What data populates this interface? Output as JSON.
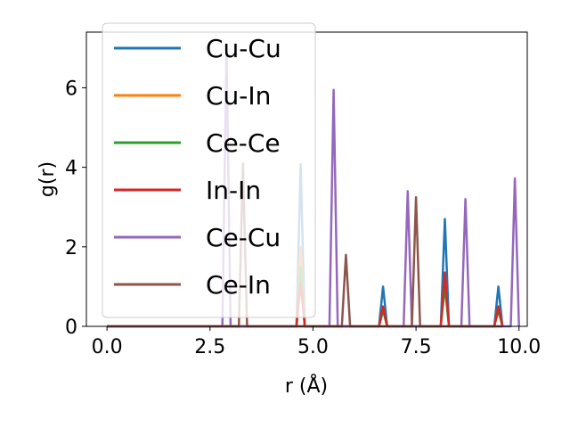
{
  "chart_data": {
    "type": "line",
    "title": "",
    "xlabel": "r (Å)",
    "ylabel": "g(r)",
    "xlim": [
      -0.5,
      10.2
    ],
    "ylim": [
      0,
      7.4
    ],
    "xticks": [
      0.0,
      2.5,
      5.0,
      7.5,
      10.0
    ],
    "xtick_labels": [
      "0.0",
      "2.5",
      "5.0",
      "7.5",
      "10.0"
    ],
    "yticks": [
      0,
      2,
      4,
      6
    ],
    "ytick_labels": [
      "0",
      "2",
      "4",
      "6"
    ],
    "grid": false,
    "legend_position": "top-left",
    "peak_halfwidth": 0.1,
    "series": [
      {
        "name": "Cu-Cu",
        "color": "#1f77b4",
        "baseline": [
          0.0,
          9.6
        ],
        "peaks": [
          [
            4.7,
            4.08
          ],
          [
            6.7,
            1.0
          ],
          [
            8.2,
            2.7
          ],
          [
            9.5,
            1.0
          ]
        ]
      },
      {
        "name": "Cu-In",
        "color": "#ff7f0e",
        "baseline": [
          0.0,
          9.6
        ],
        "peaks": [
          [
            4.7,
            2.0
          ],
          [
            6.7,
            0.5
          ],
          [
            8.2,
            1.35
          ],
          [
            9.5,
            0.5
          ]
        ]
      },
      {
        "name": "Ce-Ce",
        "color": "#2ca02c",
        "baseline": [
          0.0,
          9.6
        ],
        "peaks": [
          [
            4.7,
            1.5
          ],
          [
            6.7,
            0.4
          ],
          [
            8.2,
            1.0
          ],
          [
            9.5,
            0.4
          ]
        ]
      },
      {
        "name": "In-In",
        "color": "#d62728",
        "baseline": [
          0.0,
          9.6
        ],
        "peaks": [
          [
            4.7,
            1.1
          ],
          [
            6.7,
            0.5
          ],
          [
            8.2,
            1.35
          ],
          [
            9.5,
            0.5
          ]
        ]
      },
      {
        "name": "Ce-Cu",
        "color": "#9467bd",
        "baseline": [
          0.0,
          9.9
        ],
        "peaks": [
          [
            2.9,
            7.0
          ],
          [
            5.5,
            5.95
          ],
          [
            7.3,
            3.4
          ],
          [
            8.7,
            3.2
          ],
          [
            9.9,
            3.72
          ]
        ]
      },
      {
        "name": "Ce-In",
        "color": "#8c564b",
        "baseline": [
          0.0,
          9.6
        ],
        "peaks": [
          [
            3.3,
            4.1
          ],
          [
            5.8,
            1.8
          ],
          [
            7.5,
            3.25
          ]
        ]
      }
    ]
  }
}
